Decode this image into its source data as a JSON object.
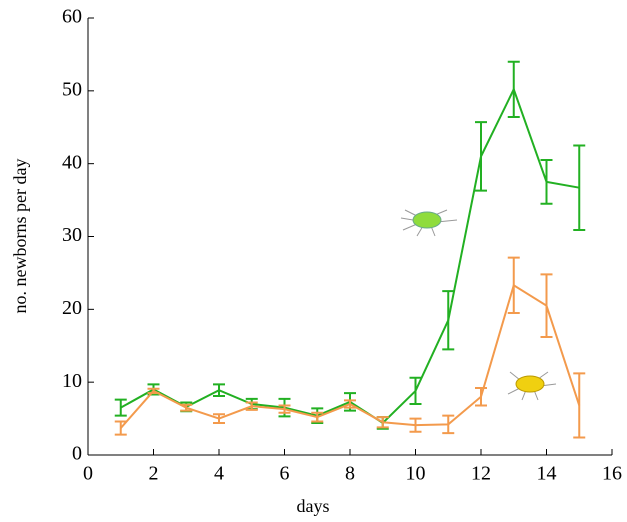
{
  "chart_data": {
    "type": "line",
    "xlabel": "days",
    "ylabel": "no. newborns per day",
    "x": [
      1,
      2,
      3,
      4,
      5,
      6,
      7,
      8,
      9,
      10,
      11,
      12,
      13,
      14,
      15
    ],
    "series": [
      {
        "color": "#22b022",
        "values": [
          6.5,
          9,
          6.6,
          8.9,
          7.0,
          6.5,
          5.4,
          7.3,
          4.4,
          8.8,
          18.5,
          41,
          50.2,
          37.5,
          36.7
        ],
        "errors": [
          1.1,
          0.7,
          0.6,
          0.8,
          0.7,
          1.2,
          1.0,
          1.2,
          0.8,
          1.8,
          4.0,
          4.7,
          3.8,
          3.0,
          5.8
        ]
      },
      {
        "color": "#f39a4c",
        "values": [
          3.7,
          8.8,
          6.5,
          5.0,
          6.7,
          6.3,
          5.2,
          7.0,
          4.5,
          4.1,
          4.2,
          8.0,
          23.3,
          20.5,
          6.8
        ],
        "errors": [
          0.9,
          0.3,
          0.4,
          0.6,
          0.5,
          0.5,
          0.6,
          0.5,
          0.7,
          0.9,
          1.2,
          1.2,
          3.8,
          4.3,
          4.4
        ]
      }
    ],
    "xlim": [
      0,
      16
    ],
    "xticks": [
      0,
      2,
      4,
      6,
      8,
      10,
      12,
      14,
      16
    ],
    "ylim": [
      0,
      60
    ],
    "yticks": [
      0,
      10,
      20,
      30,
      40,
      50,
      60
    ]
  }
}
